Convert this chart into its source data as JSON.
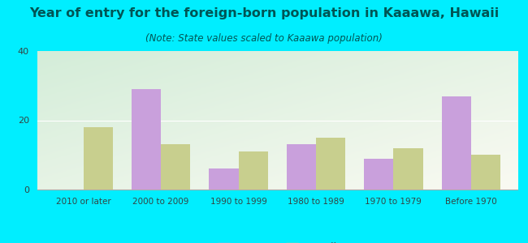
{
  "title": "Year of entry for the foreign-born population in Kaaawa, Hawaii",
  "subtitle": "(Note: State values scaled to Kaaawa population)",
  "categories": [
    "2010 or later",
    "2000 to 2009",
    "1990 to 1999",
    "1980 to 1989",
    "1970 to 1979",
    "Before 1970"
  ],
  "kaaawa_values": [
    0,
    29,
    6,
    13,
    9,
    27
  ],
  "hawaii_values": [
    18,
    13,
    11,
    15,
    12,
    10
  ],
  "kaaawa_color": "#c9a0dc",
  "hawaii_color": "#c8cf8e",
  "ylim": [
    0,
    40
  ],
  "yticks": [
    0,
    20,
    40
  ],
  "bg_outer": "#00eeff",
  "title_fontsize": 11.5,
  "subtitle_fontsize": 8.5,
  "legend_kaaawa": "Kaaawa",
  "legend_hawaii": "Hawaii",
  "bar_width": 0.38,
  "text_color": "#005555"
}
